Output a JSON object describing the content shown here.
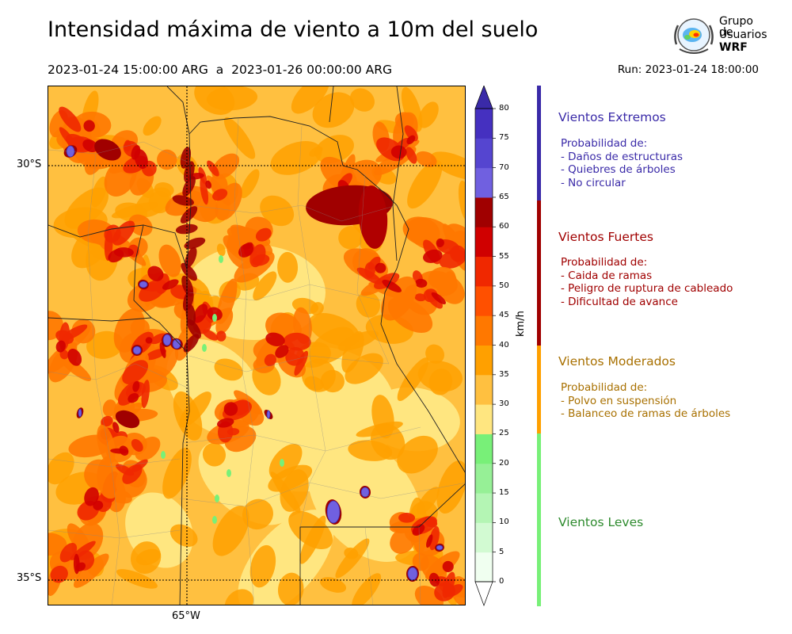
{
  "header": {
    "title": "Intensidad máxima de viento a 10m del suelo",
    "period": "2023-01-24 15:00:00 ARG  a  2023-01-26 00:00:00 ARG",
    "run": "Run: 2023-01-24 18:00:00"
  },
  "logo": {
    "line1": "Grupo de",
    "line2": "Usuarios",
    "line3": "WRF"
  },
  "map": {
    "lat_labels": [
      "30°S",
      "35°S"
    ],
    "lon_labels": [
      "65°W"
    ]
  },
  "colorbar": {
    "unit": "km/h",
    "ticks": [
      "0",
      "5",
      "10",
      "15",
      "20",
      "25",
      "30",
      "35",
      "40",
      "45",
      "50",
      "55",
      "60",
      "65",
      "70",
      "75",
      "80"
    ],
    "colors": [
      "#f0fff0",
      "#d2fad2",
      "#b4f5b4",
      "#96f096",
      "#78f078",
      "#ffe680",
      "#ffc040",
      "#ffa000",
      "#ff7800",
      "#ff5000",
      "#f02800",
      "#d00000",
      "#a00000",
      "#7060e0",
      "#5545d0",
      "#4530c0"
    ],
    "extend_color": "#3a2aa8"
  },
  "categories": [
    {
      "name": "Vientos Extremos",
      "color": "#3a2aa8",
      "desc": [
        "Probabilidad de:",
        "- Daños de estructuras",
        "- Quiebres de árboles",
        "- No circular"
      ]
    },
    {
      "name": "Vientos Fuertes",
      "color": "#a00000",
      "desc": [
        "Probabilidad de:",
        "- Caida de ramas",
        "- Peligro de ruptura de cableado",
        "- Dificultad de avance"
      ]
    },
    {
      "name": "Vientos Moderados",
      "color": "#a87000",
      "bar_color": "#ffa000",
      "desc": [
        "Probabilidad de:",
        "- Polvo en suspensión",
        "- Balanceo de ramas de árboles"
      ]
    },
    {
      "name": "Vientos Leves",
      "color": "#2e8b2e",
      "bar_color": "#78f078",
      "desc": []
    }
  ]
}
